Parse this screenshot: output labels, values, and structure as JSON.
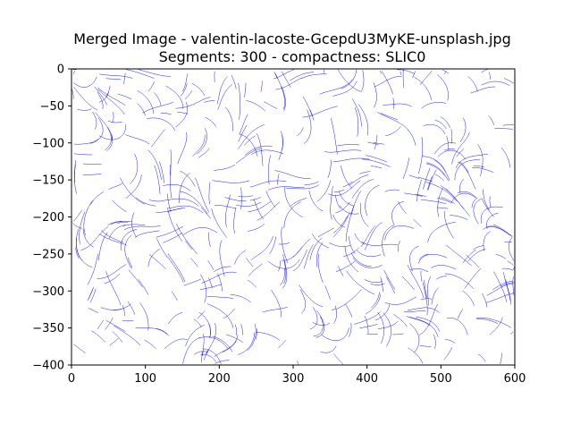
{
  "figure": {
    "title_line1": "Merged Image - valentin-lacoste-GcepdU3MyKE-unsplash.jpg",
    "title_line2": "Segments: 300 - compactness: SLIC0"
  },
  "chart_data": {
    "type": "image",
    "title": "Merged Image - valentin-lacoste-GcepdU3MyKE-unsplash.jpg\nSegments: 300 - compactness: SLIC0",
    "xlabel": "",
    "ylabel": "",
    "xlim": [
      0,
      600
    ],
    "ylim": [
      -400,
      0
    ],
    "xticks": [
      0,
      100,
      200,
      300,
      400,
      500,
      600
    ],
    "yticks": [
      0,
      -50,
      -100,
      -150,
      -200,
      -250,
      -300,
      -350,
      -400
    ],
    "xtick_labels": [
      "0",
      "100",
      "200",
      "300",
      "400",
      "500",
      "600"
    ],
    "ytick_labels": [
      "0",
      "−50",
      "−100",
      "−150",
      "−200",
      "−250",
      "−300",
      "−350",
      "−400"
    ],
    "grid": false,
    "content": "segment boundary contours",
    "line_color": "#0000ff"
  }
}
